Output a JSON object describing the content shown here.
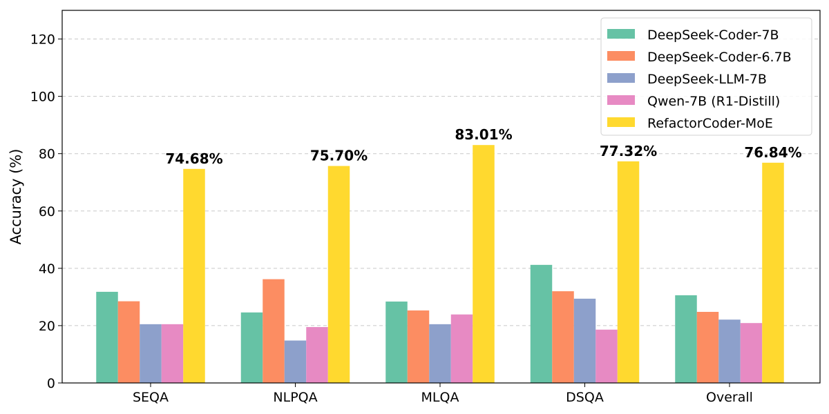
{
  "chart_data": {
    "type": "bar",
    "title": "",
    "xlabel": "",
    "ylabel": "Accuracy (%)",
    "ylim": [
      0,
      130
    ],
    "yticks": [
      0,
      20,
      40,
      60,
      80,
      100,
      120
    ],
    "grid": "y-dashed",
    "legend_position": "top-right",
    "categories": [
      "SEQA",
      "NLPQA",
      "MLQA",
      "DSQA",
      "Overall"
    ],
    "series": [
      {
        "name": "DeepSeek-Coder-7B",
        "color": "#66c2a5",
        "values": [
          31.8,
          24.6,
          28.4,
          41.2,
          30.6
        ]
      },
      {
        "name": "DeepSeek-Coder-6.7B",
        "color": "#fc8d62",
        "values": [
          28.5,
          36.2,
          25.3,
          32.0,
          24.8
        ]
      },
      {
        "name": "DeepSeek-LLM-7B",
        "color": "#8da0cb",
        "values": [
          20.5,
          14.8,
          20.5,
          29.4,
          22.1
        ]
      },
      {
        "name": "Qwen-7B (R1-Distill)",
        "color": "#e78ac3",
        "values": [
          20.5,
          19.5,
          23.9,
          18.6,
          20.9
        ]
      },
      {
        "name": "RefactorCoder-MoE",
        "color": "#ffd92f",
        "values": [
          74.68,
          75.7,
          83.01,
          77.32,
          76.84
        ]
      }
    ],
    "data_labels": [
      "74.68%",
      "75.70%",
      "83.01%",
      "77.32%",
      "76.84%"
    ]
  }
}
